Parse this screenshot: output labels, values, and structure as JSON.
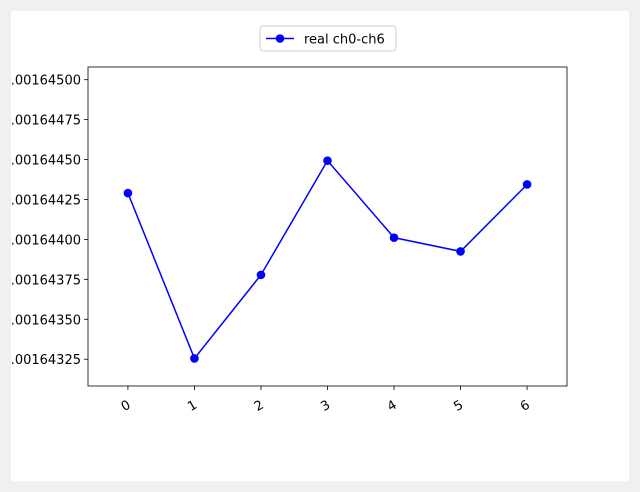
{
  "chart_data": {
    "type": "line",
    "x": [
      0,
      1,
      2,
      3,
      4,
      5,
      6
    ],
    "series": [
      {
        "name": "real ch0-ch6",
        "values": [
          0.00164429,
          0.001643255,
          0.001643778,
          0.001644493,
          0.001644011,
          0.001643925,
          0.001644344
        ],
        "color": "#0000ff",
        "marker": "circle"
      }
    ],
    "x_ticks": [
      "0",
      "1",
      "2",
      "3",
      "4",
      "5",
      "6"
    ],
    "y_ticks": [
      {
        "value": 0.00164325,
        "label": ".00164325"
      },
      {
        "value": 0.0016435,
        "label": ".00164350"
      },
      {
        "value": 0.00164375,
        "label": ".00164375"
      },
      {
        "value": 0.001644,
        "label": ".00164400"
      },
      {
        "value": 0.00164425,
        "label": ".00164425"
      },
      {
        "value": 0.0016445,
        "label": ".00164450"
      },
      {
        "value": 0.00164475,
        "label": ".00164475"
      },
      {
        "value": 0.001645,
        "label": ".00164500"
      }
    ],
    "xlim": [
      -0.6,
      6.6
    ],
    "ylim": [
      0.0016430823,
      0.0016450795
    ],
    "grid": true,
    "legend_position": "top-center",
    "grid_color": "#b0b0b0",
    "title": "",
    "xlabel": "",
    "ylabel": ""
  }
}
